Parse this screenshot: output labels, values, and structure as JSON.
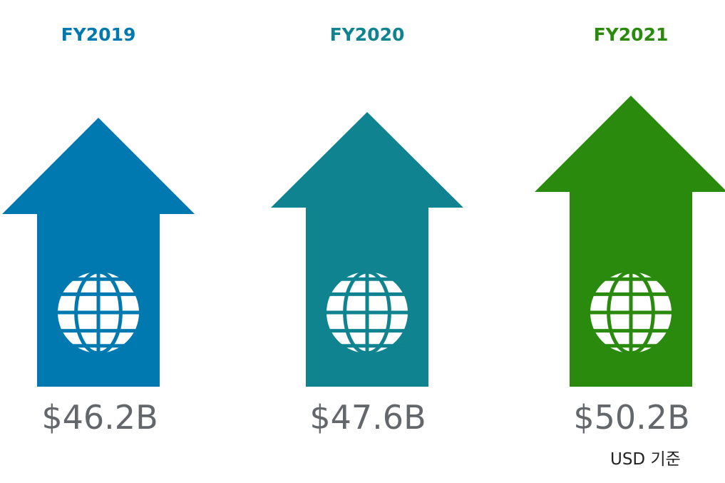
{
  "items": [
    {
      "year": "FY2019",
      "value": "$46.2B",
      "color": "#0079b0",
      "icon": "globe-icon"
    },
    {
      "year": "FY2020",
      "value": "$47.6B",
      "color": "#0f8390",
      "icon": "globe-icon"
    },
    {
      "year": "FY2021",
      "value": "$50.2B",
      "color": "#2a8a0e",
      "icon": "globe-icon"
    }
  ],
  "note": "USD 기준"
}
